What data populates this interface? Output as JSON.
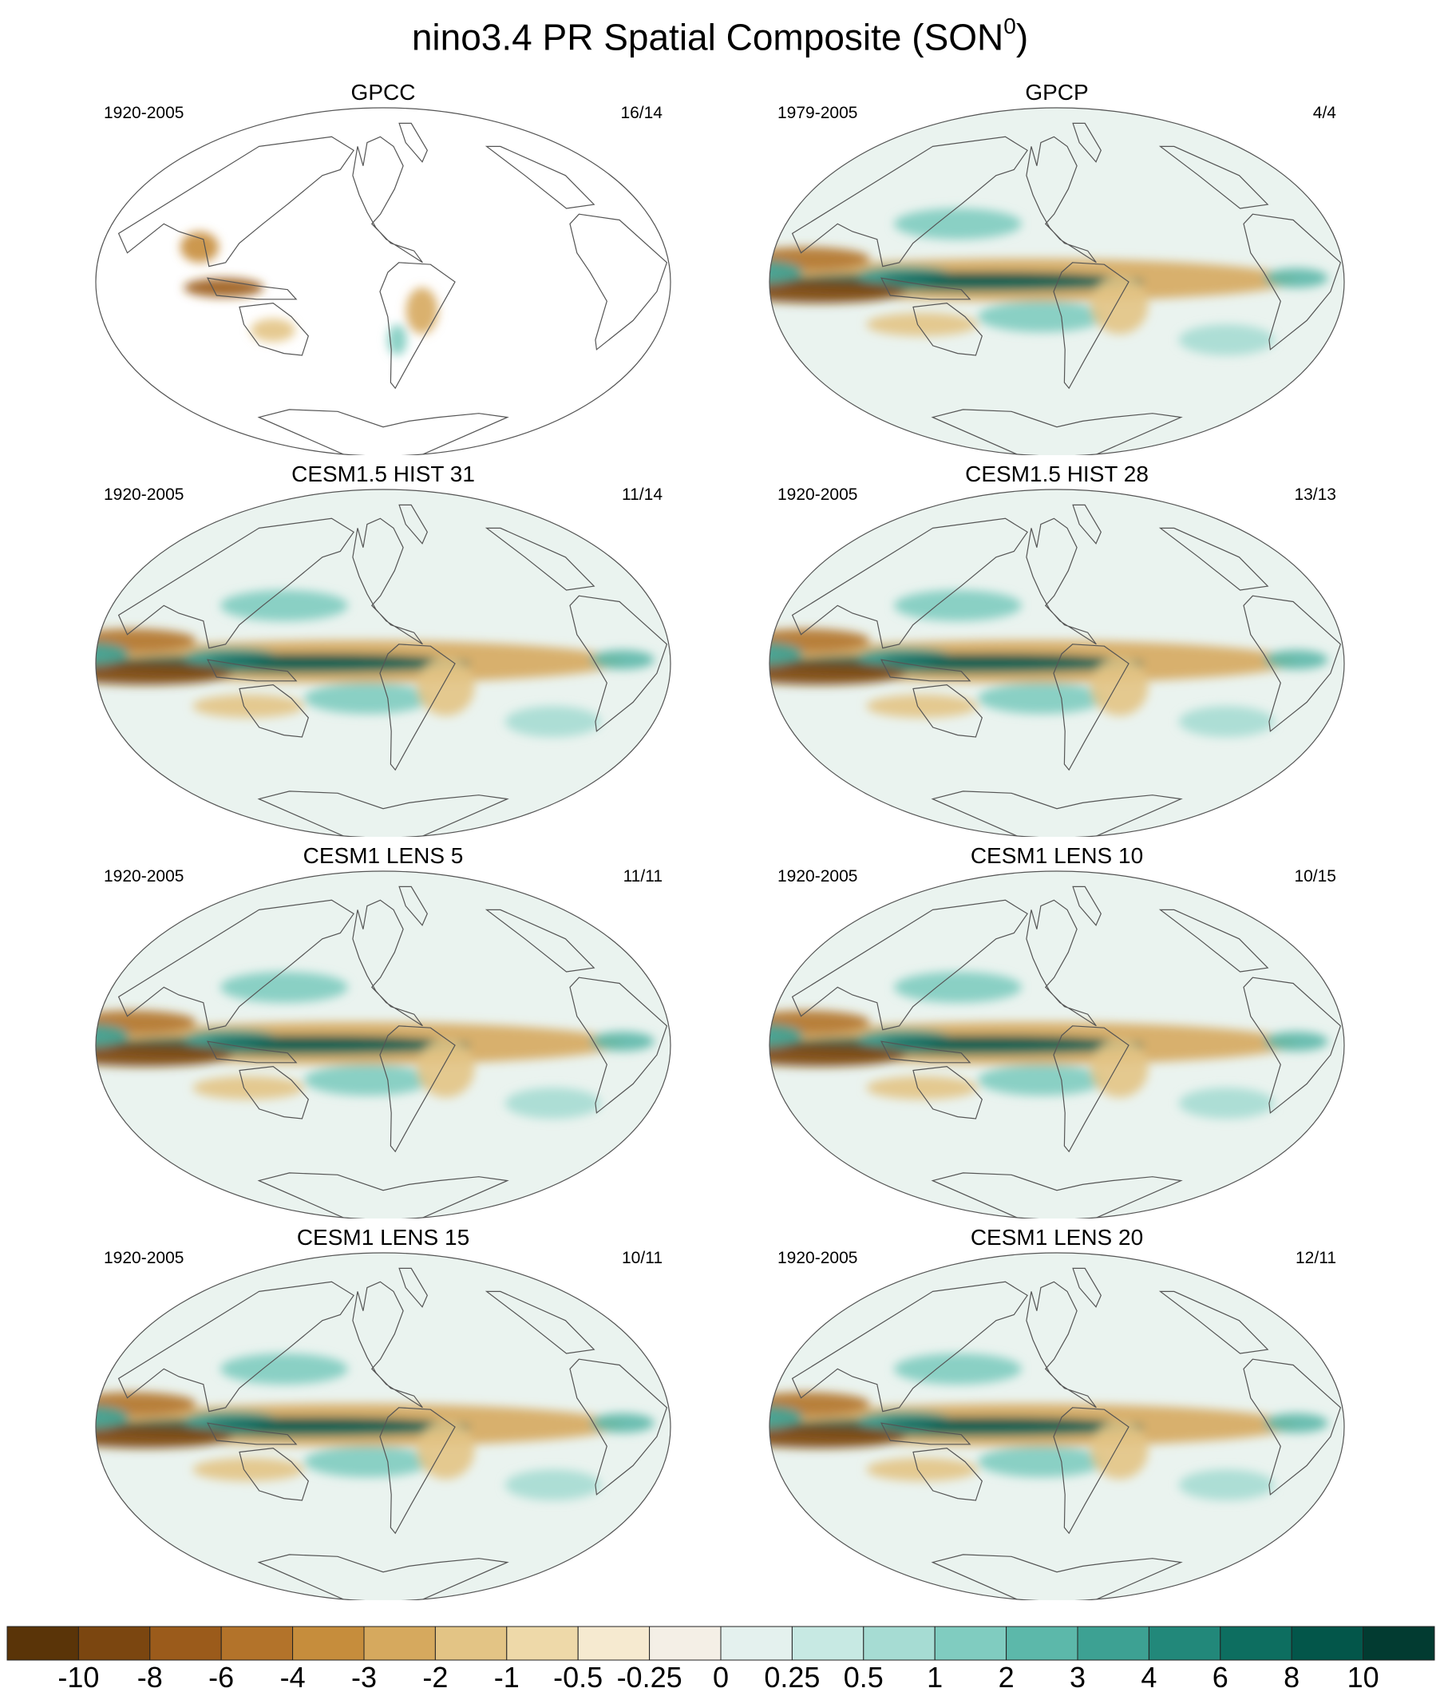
{
  "title": {
    "main": "nino3.4 PR Spatial Composite (SON",
    "superscript": "0",
    "close": ")"
  },
  "panels": [
    {
      "name": "GPCC",
      "period": "1920-2005",
      "count": "16/14",
      "coverage": "land-only"
    },
    {
      "name": "GPCP",
      "period": "1979-2005",
      "count": "4/4",
      "coverage": "global"
    },
    {
      "name": "CESM1.5 HIST 31",
      "period": "1920-2005",
      "count": "11/14",
      "coverage": "global"
    },
    {
      "name": "CESM1.5 HIST 28",
      "period": "1920-2005",
      "count": "13/13",
      "coverage": "global"
    },
    {
      "name": "CESM1 LENS 5",
      "period": "1920-2005",
      "count": "11/11",
      "coverage": "global"
    },
    {
      "name": "CESM1 LENS 10",
      "period": "1920-2005",
      "count": "10/15",
      "coverage": "global"
    },
    {
      "name": "CESM1 LENS 15",
      "period": "1920-2005",
      "count": "10/11",
      "coverage": "global"
    },
    {
      "name": "CESM1 LENS 20",
      "period": "1920-2005",
      "count": "12/11",
      "coverage": "global"
    }
  ],
  "colorbar": {
    "colors": [
      "#5a3408",
      "#7b4610",
      "#9b5b1b",
      "#b3732a",
      "#c68d3c",
      "#d6a95e",
      "#e3c485",
      "#eed9a9",
      "#f6ead0",
      "#f4efe6",
      "#e4f1ee",
      "#c7e9e3",
      "#a6dcd3",
      "#80ccc0",
      "#5cb8aa",
      "#3da193",
      "#22887a",
      "#0d6e60",
      "#03564a",
      "#023b31"
    ],
    "labels": [
      "-10",
      "-8",
      "-6",
      "-4",
      "-3",
      "-2",
      "-1",
      "-0.5",
      "-0.25",
      "0",
      "0.25",
      "0.5",
      "1",
      "2",
      "3",
      "4",
      "6",
      "8",
      "10"
    ]
  }
}
